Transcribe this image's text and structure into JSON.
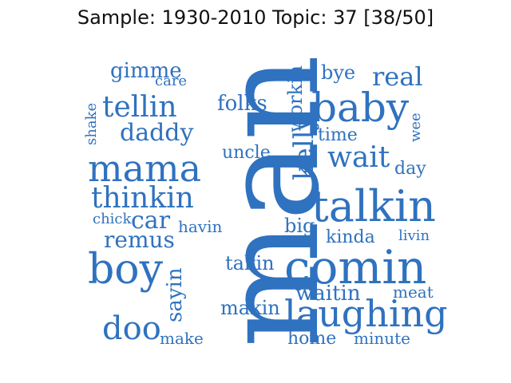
{
  "title": "Sample: 1930-2010 Topic: 37 [38/50]",
  "word_color": "#2f72bf",
  "words": [
    {
      "text": "man"
    },
    {
      "text": "baby"
    },
    {
      "text": "talkin"
    },
    {
      "text": "comin"
    },
    {
      "text": "laughing"
    },
    {
      "text": "mama"
    },
    {
      "text": "boy"
    },
    {
      "text": "thinkin"
    },
    {
      "text": "tellin"
    },
    {
      "text": "daddy"
    },
    {
      "text": "doo"
    },
    {
      "text": "wait"
    },
    {
      "text": "real"
    },
    {
      "text": "car"
    },
    {
      "text": "remus"
    },
    {
      "text": "gimme"
    },
    {
      "text": "care"
    },
    {
      "text": "shake"
    },
    {
      "text": "folks"
    },
    {
      "text": "workin"
    },
    {
      "text": "kelly"
    },
    {
      "text": "uncle"
    },
    {
      "text": "bye"
    },
    {
      "text": "time"
    },
    {
      "text": "wee"
    },
    {
      "text": "day"
    },
    {
      "text": "chick"
    },
    {
      "text": "havin"
    },
    {
      "text": "big"
    },
    {
      "text": "kinda"
    },
    {
      "text": "livin"
    },
    {
      "text": "takin"
    },
    {
      "text": "sayin"
    },
    {
      "text": "waitin"
    },
    {
      "text": "meat"
    },
    {
      "text": "makin"
    },
    {
      "text": "home"
    },
    {
      "text": "minute"
    },
    {
      "text": "make"
    }
  ]
}
